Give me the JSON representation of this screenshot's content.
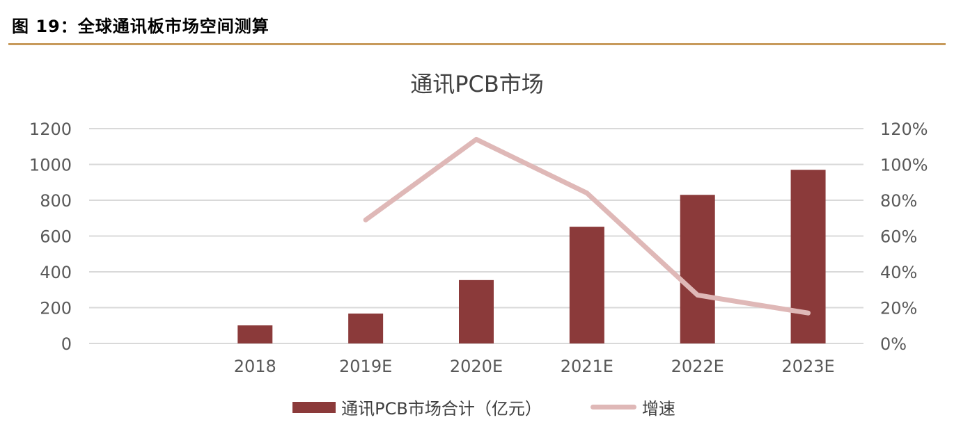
{
  "figure": {
    "caption": "图 19：全球通讯板市场空间测算"
  },
  "chart_data": {
    "type": "bar+line",
    "title": "通讯PCB市场",
    "categories": [
      "",
      "2018",
      "2019E",
      "2020E",
      "2021E",
      "2022E",
      "2023E"
    ],
    "series": [
      {
        "name": "通讯PCB市场合计（亿元）",
        "type": "bar",
        "axis": "left",
        "color": "#8b3a3a",
        "values": [
          null,
          101,
          167,
          354,
          652,
          830,
          970
        ]
      },
      {
        "name": "增速",
        "type": "line",
        "axis": "right",
        "color": "#dfb8b7",
        "values": [
          null,
          null,
          0.69,
          1.14,
          0.84,
          0.27,
          0.17
        ]
      }
    ],
    "y_left": {
      "ylim": [
        0,
        1200
      ],
      "ticks": [
        "0",
        "200",
        "400",
        "600",
        "800",
        "1000",
        "1200"
      ]
    },
    "y_right": {
      "ylim": [
        0,
        1.2
      ],
      "ticks": [
        "0%",
        "20%",
        "40%",
        "60%",
        "80%",
        "100%",
        "120%"
      ]
    },
    "xlabel": "",
    "ylabel": "",
    "grid": true,
    "legend_position": "bottom"
  }
}
